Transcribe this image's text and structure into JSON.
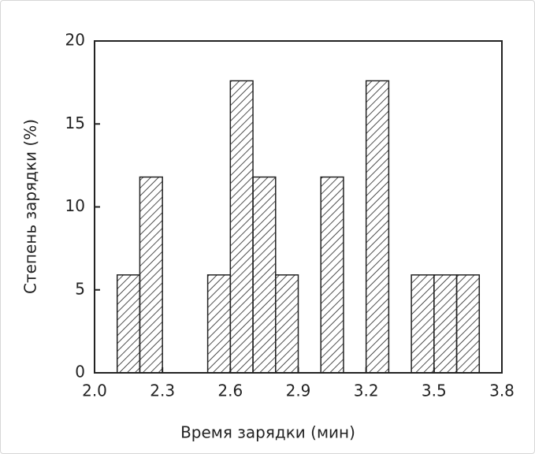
{
  "chart_data": {
    "type": "histogram",
    "xlabel": "Время зарядки (мин)",
    "ylabel": "Степень зарядки (%)",
    "bins": [
      2.1,
      2.2,
      2.3,
      2.4,
      2.5,
      2.6,
      2.7,
      2.8,
      2.9,
      3.0,
      3.1,
      3.2,
      3.3,
      3.4,
      3.5,
      3.6,
      3.7
    ],
    "counts": [
      5.9,
      11.8,
      0,
      0,
      5.9,
      17.6,
      11.8,
      5.9,
      0,
      11.8,
      0,
      17.6,
      0,
      5.9,
      5.9,
      5.9
    ],
    "color": "#222222",
    "xlim": [
      2.0,
      3.8
    ],
    "xticks": [
      {
        "value": 2.0,
        "label": "2.0"
      },
      2.3,
      2.6,
      2.9,
      3.2,
      3.5,
      3.8
    ],
    "ylim": [
      0,
      20
    ],
    "yticks": [
      0,
      5,
      10,
      15,
      20
    ],
    "grid": false
  }
}
